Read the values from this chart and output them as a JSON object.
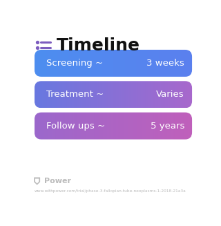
{
  "title": "Timeline",
  "title_fontsize": 18,
  "title_color": "#111111",
  "icon_color": "#7c5cbf",
  "background_color": "#ffffff",
  "rows": [
    {
      "label": "Screening ~",
      "value": "3 weeks",
      "color_left": "#4d8ef0",
      "color_right": "#5b80ee"
    },
    {
      "label": "Treatment ~",
      "value": "Varies",
      "color_left": "#6878e0",
      "color_right": "#a868cc"
    },
    {
      "label": "Follow ups ~",
      "value": "5 years",
      "color_left": "#9b68cc",
      "color_right": "#c060bb"
    }
  ],
  "label_fontsize": 9.5,
  "value_fontsize": 9.5,
  "text_color": "#ffffff",
  "footer_text": "Power",
  "footer_color": "#bbbbbb",
  "footer_fontsize": 8,
  "url_text": "www.withpower.com/trial/phase-3-fallopian-tube-neoplasms-1-2018-21a3a",
  "url_color": "#bbbbbb",
  "url_fontsize": 4.2
}
